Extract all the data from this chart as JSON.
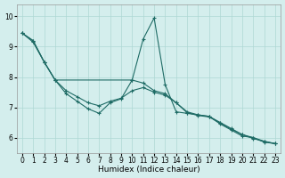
{
  "xlabel": "Humidex (Indice chaleur)",
  "bg_color": "#d4eeed",
  "grid_color": "#aed8d4",
  "line_color": "#1e6b65",
  "xlim": [
    -0.5,
    23.5
  ],
  "ylim": [
    5.5,
    10.4
  ],
  "xticks": [
    0,
    1,
    2,
    3,
    4,
    5,
    6,
    7,
    8,
    9,
    10,
    11,
    12,
    13,
    14,
    15,
    16,
    17,
    18,
    19,
    20,
    21,
    22,
    23
  ],
  "yticks": [
    6,
    7,
    8,
    9,
    10
  ],
  "line_spike_x": [
    0,
    1,
    2,
    3,
    10,
    11,
    12,
    13,
    14,
    15,
    16,
    17,
    18,
    19,
    20,
    21,
    22,
    23
  ],
  "line_spike_y": [
    9.45,
    9.2,
    8.5,
    7.9,
    7.9,
    9.25,
    9.95,
    7.75,
    6.85,
    6.8,
    6.75,
    6.7,
    6.45,
    6.25,
    6.05,
    6.0,
    5.85,
    5.8
  ],
  "line_straight_x": [
    0,
    1,
    2,
    3,
    4,
    5,
    6,
    7,
    8,
    9,
    10,
    11,
    12,
    13,
    14,
    15,
    16,
    17,
    18,
    19,
    20,
    21,
    22,
    23
  ],
  "line_straight_y": [
    9.45,
    9.2,
    8.5,
    7.9,
    7.55,
    7.35,
    7.15,
    7.05,
    7.2,
    7.3,
    7.55,
    7.65,
    7.5,
    7.4,
    7.15,
    6.85,
    6.75,
    6.7,
    6.5,
    6.3,
    6.1,
    6.0,
    5.88,
    5.8
  ],
  "line_bumpy_x": [
    0,
    1,
    2,
    3,
    4,
    5,
    6,
    7,
    8,
    9,
    10,
    11,
    12,
    13,
    14,
    15,
    16,
    17,
    18,
    19,
    20,
    21,
    22,
    23
  ],
  "line_bumpy_y": [
    9.45,
    9.15,
    8.5,
    7.9,
    7.45,
    7.2,
    6.95,
    6.8,
    7.15,
    7.28,
    7.9,
    7.8,
    7.55,
    7.45,
    7.15,
    6.82,
    6.73,
    6.68,
    6.48,
    6.28,
    6.1,
    5.97,
    5.87,
    5.8
  ]
}
